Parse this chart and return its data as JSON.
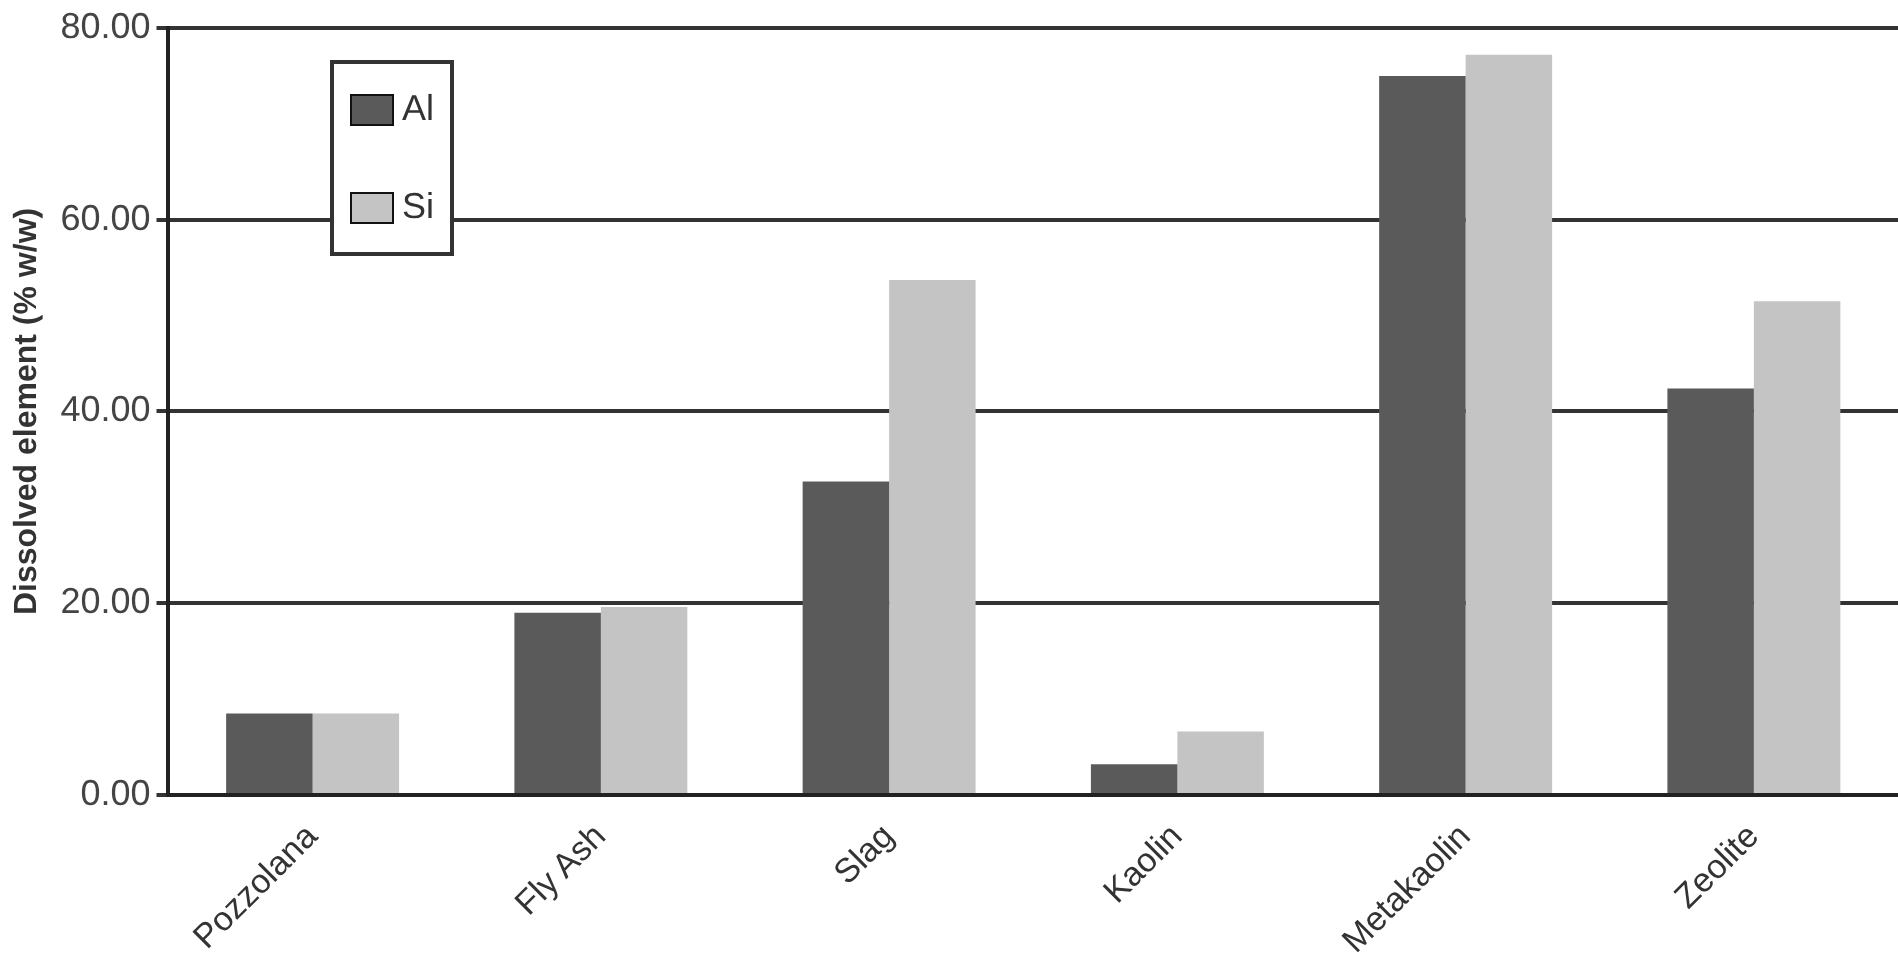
{
  "chart_data": {
    "type": "bar",
    "ylabel": "Dissolved element (% w/w)",
    "categories": [
      "Pozzolana",
      "Fly Ash",
      "Slag",
      "Kaolin",
      "Metakaolin",
      "Zeolite"
    ],
    "series": [
      {
        "name": "Al",
        "color": "#5a5a5a",
        "values": [
          8.5,
          19.0,
          32.7,
          3.2,
          75.0,
          42.4
        ]
      },
      {
        "name": "Si",
        "color": "#c4c4c4",
        "values": [
          8.5,
          19.6,
          53.7,
          6.6,
          77.2,
          51.5
        ]
      }
    ],
    "ylim": [
      0,
      80
    ],
    "yticks": [
      {
        "value": 0,
        "label": "0.00"
      },
      {
        "value": 20,
        "label": "20.00"
      },
      {
        "value": 40,
        "label": "40.00"
      },
      {
        "value": 60,
        "label": "60.00"
      },
      {
        "value": 80,
        "label": "80.00"
      }
    ],
    "grid": "y",
    "legend": "top left"
  }
}
